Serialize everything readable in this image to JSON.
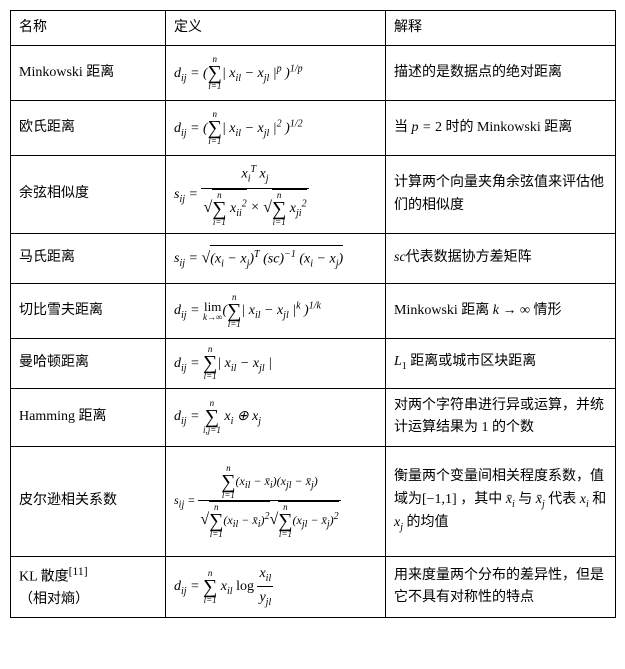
{
  "headers": {
    "name": "名称",
    "definition": "定义",
    "explanation": "解释"
  },
  "rows": [
    {
      "name": "Minkowski  距离",
      "formula_html": "<span class='formula'>d<sub>ij</sub> = (<span class='sum-limits'><span class='sum-upper'>n</span><span class='sum-sym'>∑</span><span class='sum-lower'>l=1</span></span>| x<sub>il</sub> − x<sub>jl</sub> |<sup>p</sup> )<sup>1/p</sup></span>",
      "explanation": "描述的是数据点的绝对距离"
    },
    {
      "name": "欧氏距离",
      "formula_html": "<span class='formula'>d<sub>ij</sub> = (<span class='sum-limits'><span class='sum-upper'>n</span><span class='sum-sym'>∑</span><span class='sum-lower'>l=1</span></span>| x<sub>il</sub> − x<sub>jl</sub> |<sup>2</sup> )<sup>1/2</sup></span>",
      "explanation_html": "当 <span class='formula'>p = <span class='roman'>2</span></span> 时的  Minkowski 距离"
    },
    {
      "name": "余弦相似度",
      "formula_html": "<span class='formula'>s<sub>ij</sub> = <span class='frac'><span class='frac-num'>x<sub>i</sub><sup>T</sup> x<sub>j</sub></span><span class='frac-den'><span class='sqrt'><span class='sqrt-sym'>√</span><span class='sqrt-content'><span class='sum-limits'><span class='sum-upper'>n</span><span class='sum-sym'>∑</span><span class='sum-lower'>i=1</span></span> x<sub>ii</sub><sup>2</sup></span></span> × <span class='sqrt'><span class='sqrt-sym'>√</span><span class='sqrt-content'><span class='sum-limits'><span class='sum-upper'>n</span><span class='sum-sym'>∑</span><span class='sum-lower'>i=1</span></span> x<sub>ji</sub><sup>2</sup></span></span></span></span></span>",
      "explanation": "计算两个向量夹角余弦值来评估他们的相似度"
    },
    {
      "name": "马氏距离",
      "formula_html": "<span class='formula'>s<sub>ij</sub> = <span class='sqrt'><span class='sqrt-sym'>√</span><span class='sqrt-content'>(x<sub>i</sub> − x<sub>j</sub>)<sup>T</sup> (sc)<sup>−1</sup> (x<sub>i</sub> − x<sub>j</sub>)</span></span></span>",
      "explanation_html": "<span class='formula'>sc</span>代表数据协方差矩阵"
    },
    {
      "name": "切比雪夫距离",
      "formula_html": "<span class='formula'>d<sub>ij</sub> = <span class='lim'><span class='lim-top roman'>lim</span><span class='lim-bot'>k→∞</span></span>(<span class='sum-limits'><span class='sum-upper'>n</span><span class='sum-sym'>∑</span><span class='sum-lower'>l=1</span></span>| x<sub>il</sub> − x<sub>jl</sub> |<sup>k</sup> )<sup>1/k</sup></span>",
      "explanation_html": "Minkowski 距离 <span class='formula'>k → ∞</span> 情形"
    },
    {
      "name": "曼哈顿距离",
      "formula_html": "<span class='formula'>d<sub>ij</sub> = <span class='sum-limits'><span class='sum-upper'>n</span><span class='sum-sym'>∑</span><span class='sum-lower'>l=1</span></span>| x<sub>il</sub> − x<sub>jl</sub> |</span>",
      "explanation_html": "<span class='formula'>L<sub><span class='roman'>1</span></sub></span> 距离或城市区块距离"
    },
    {
      "name": "Hamming  距离",
      "formula_html": "<span class='formula'>d<sub>ij</sub> = <span class='sum-limits'><span class='sum-upper'>n</span><span class='sum-sym'>∑</span><span class='sum-lower'>i,j=1</span></span> x<sub>i</sub> ⊕ x<sub>j</sub></span>",
      "explanation": "对两个字符串进行异或运算，并统计运算结果为 1 的个数"
    },
    {
      "name": "皮尔逊相关系数",
      "formula_html": "<span class='formula' style='font-size:12px'>s<sub>ij</sub> = <span class='frac'><span class='frac-num'><span class='sum-limits'><span class='sum-upper'>n</span><span class='sum-sym'>∑</span><span class='sum-lower'>l=1</span></span>(x<sub>il</sub> − x̄<sub>i</sub>)(x<sub>jl</sub> − x̄<sub>j</sub>)</span><span class='frac-den'><span class='sqrt'><span class='sqrt-sym'>√</span><span class='sqrt-content'><span class='sum-limits'><span class='sum-upper'>n</span><span class='sum-sym'>∑</span><span class='sum-lower'>l=1</span></span>(x<sub>il</sub> − x̄<sub>i</sub>)<sup>2</sup></span></span><span class='sqrt'><span class='sqrt-sym'>√</span><span class='sqrt-content'><span class='sum-limits'><span class='sum-upper'>n</span><span class='sum-sym'>∑</span><span class='sum-lower'>l=1</span></span>(x<sub>jl</sub> − x̄<sub>j</sub>)<sup>2</sup></span></span></span></span></span>",
      "explanation_html": "衡量两个变量间相关程度系数，值域为[−1,1] ，其中 <span class='formula'>x̄<sub>i</sub></span> 与 <span class='formula'>x̄<sub>j</sub></span> 代表 <span class='formula'>x<sub>i</sub></span> 和 <span class='formula'>x<sub>j</sub></span> 的均值"
    },
    {
      "name_html": "KL 散度<sup>[11]</sup>（相对熵）",
      "formula_html": "<span class='formula'>d<sub>ij</sub> = <span class='sum-limits'><span class='sum-upper'>n</span><span class='sum-sym'>∑</span><span class='sum-lower'>l=1</span></span> x<sub>il</sub> <span class='roman'>log</span> <span class='frac'><span class='frac-num'>x<sub>il</sub></span><span class='frac-den'>y<sub>jl</sub></span></span></span>",
      "explanation": "用来度量两个分布的差异性，但是它不具有对称性的特点"
    }
  ],
  "row_heights": [
    "tall-cell",
    "tall-cell",
    "taller-cell",
    "mid-cell",
    "tall-cell",
    "mid-cell",
    "tall-cell",
    "tallest-cell",
    "tall-cell"
  ],
  "colors": {
    "border": "#000000",
    "background": "#ffffff",
    "text": "#000000"
  }
}
